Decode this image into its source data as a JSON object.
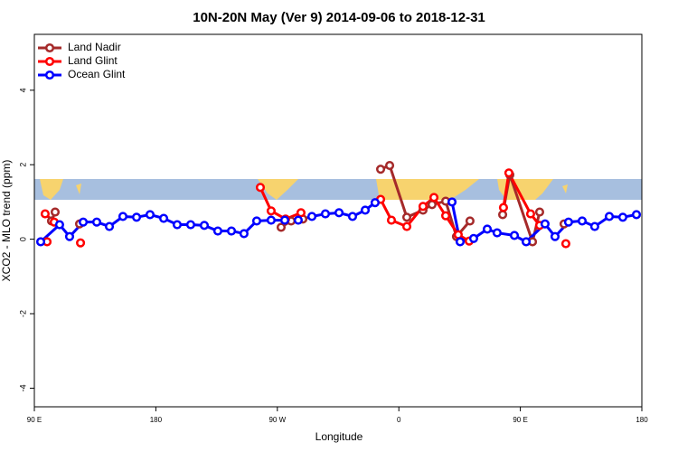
{
  "chart_data": {
    "type": "line",
    "title": "10N-20N May (Ver 9)   2014-09-06 to 2018-12-31",
    "x_label": "Longitude",
    "y_label": "XCO2 - MLO trend (ppm)",
    "xlim": [
      90,
      540
    ],
    "xticks": [
      {
        "value": 90,
        "label": "90 E"
      },
      {
        "value": 180,
        "label": "180"
      },
      {
        "value": 270,
        "label": "90 W"
      },
      {
        "value": 360,
        "label": "0"
      },
      {
        "value": 450,
        "label": "90 E"
      },
      {
        "value": 540,
        "label": "180"
      }
    ],
    "ylim": [
      -4.5,
      5.5
    ],
    "yticks": [
      4,
      2,
      0,
      -2,
      -4
    ],
    "legend": "top-left",
    "series": [
      {
        "name": "Land Nadir",
        "color": "#a52a2a",
        "x": [
          102.7,
          105.4,
          null,
          123.5,
          null,
          272.8,
          280.2,
          288.9,
          null,
          346.5,
          353.2,
          365.9,
          377.9,
          384.6,
          394.7,
          402.7,
          412.7,
          null,
          436.9,
          442.2,
          459.0,
          464.3,
          null,
          482.4
        ],
        "values": [
          0.49,
          0.73,
          null,
          0.41,
          null,
          0.32,
          0.49,
          0.54,
          null,
          1.88,
          1.98,
          0.59,
          0.78,
          0.93,
          1.02,
          0.07,
          0.49,
          null,
          0.66,
          1.73,
          -0.07,
          0.73,
          null,
          0.41
        ]
      },
      {
        "name": "Land Glint",
        "color": "#ff0000",
        "x": [
          99.4,
          null,
          98.0,
          104.7,
          null,
          124.2,
          null,
          257.4,
          265.4,
          276.1,
          287.5,
          null,
          346.5,
          354.5,
          365.9,
          377.9,
          386.0,
          394.7,
          404.0,
          412.1,
          null,
          437.5,
          441.5,
          457.6,
          464.3,
          null,
          483.7
        ],
        "values": [
          -0.07,
          null,
          0.68,
          0.46,
          null,
          -0.1,
          null,
          1.39,
          0.76,
          0.54,
          0.71,
          null,
          1.07,
          0.51,
          0.34,
          0.88,
          1.12,
          0.63,
          0.12,
          -0.05,
          null,
          0.85,
          1.78,
          0.68,
          0.37,
          null,
          -0.12
        ]
      },
      {
        "name": "Ocean Glint",
        "color": "#0000ff",
        "x": [
          94.7,
          108.7,
          116.1,
          126.2,
          136.2,
          145.6,
          155.6,
          165.7,
          175.7,
          185.8,
          195.8,
          205.8,
          215.9,
          225.9,
          236.0,
          245.3,
          254.7,
          265.4,
          275.5,
          285.5,
          295.6,
          305.6,
          315.7,
          325.7,
          335.1,
          342.4,
          null,
          399.4,
          405.4,
          415.4,
          425.5,
          432.8,
          445.6,
          454.3,
          468.3,
          475.7,
          485.7,
          495.8,
          505.1,
          515.9,
          525.9,
          536.0
        ],
        "values": [
          -0.07,
          0.39,
          0.07,
          0.46,
          0.46,
          0.34,
          0.61,
          0.59,
          0.66,
          0.56,
          0.39,
          0.39,
          0.37,
          0.22,
          0.22,
          0.15,
          0.49,
          0.51,
          0.51,
          0.51,
          0.61,
          0.68,
          0.71,
          0.61,
          0.78,
          0.98,
          null,
          1.0,
          -0.07,
          0.02,
          0.27,
          0.17,
          0.1,
          -0.07,
          0.41,
          0.07,
          0.46,
          0.49,
          0.34,
          0.61,
          0.59,
          0.66
        ]
      }
    ]
  }
}
